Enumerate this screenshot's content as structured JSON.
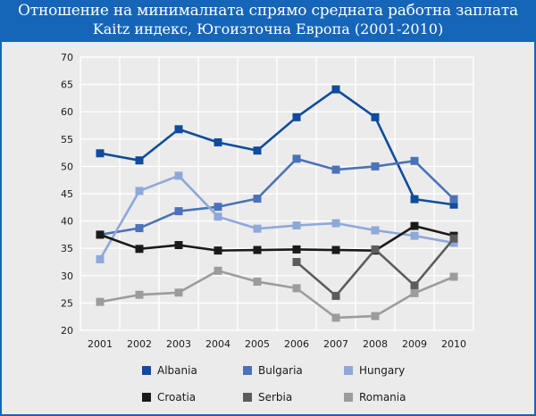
{
  "chart_data": {
    "type": "line",
    "title": "Отношение на минималната спрямо средната работна заплата",
    "subtitle": "Kaitz индекс, Югоизточна Европа (2001-2010)",
    "xlabel": "",
    "ylabel": "",
    "x": [
      "2001",
      "2002",
      "2003",
      "2004",
      "2005",
      "2006",
      "2007",
      "2008",
      "2009",
      "2010"
    ],
    "ylim": [
      20,
      70
    ],
    "yticks": [
      "20",
      "25",
      "30",
      "35",
      "40",
      "45",
      "50",
      "55",
      "60",
      "65",
      "70"
    ],
    "grid": true,
    "legend_position": "bottom",
    "series": [
      {
        "name": "Albania",
        "color": "#0f4c9c",
        "values": [
          52.4,
          51.1,
          56.8,
          54.4,
          52.9,
          59.0,
          64.1,
          59.0,
          44.0,
          43.0
        ]
      },
      {
        "name": "Bulgaria",
        "color": "#4b72b8",
        "values": [
          37.5,
          38.7,
          41.8,
          42.6,
          44.1,
          51.4,
          49.4,
          50.0,
          51.0,
          44.0
        ]
      },
      {
        "name": "Hungary",
        "color": "#8ea8d8",
        "values": [
          33.0,
          45.5,
          48.3,
          40.8,
          38.6,
          39.2,
          39.6,
          38.3,
          37.3,
          36.0
        ]
      },
      {
        "name": "Croatia",
        "color": "#1a1a1a",
        "values": [
          37.5,
          34.9,
          35.6,
          34.6,
          34.7,
          34.8,
          34.7,
          34.6,
          39.1,
          37.3
        ]
      },
      {
        "name": "Serbia",
        "color": "#5c5c5c",
        "values": [
          null,
          null,
          null,
          null,
          null,
          32.5,
          26.3,
          34.8,
          28.2,
          36.8
        ]
      },
      {
        "name": "Romania",
        "color": "#9c9c9c",
        "values": [
          25.2,
          26.5,
          26.9,
          30.9,
          28.9,
          27.7,
          22.3,
          22.6,
          26.8,
          29.8
        ]
      }
    ]
  },
  "colors": {
    "frame": "#1565b8",
    "panel": "#ebebeb",
    "grid": "#ffffff"
  }
}
